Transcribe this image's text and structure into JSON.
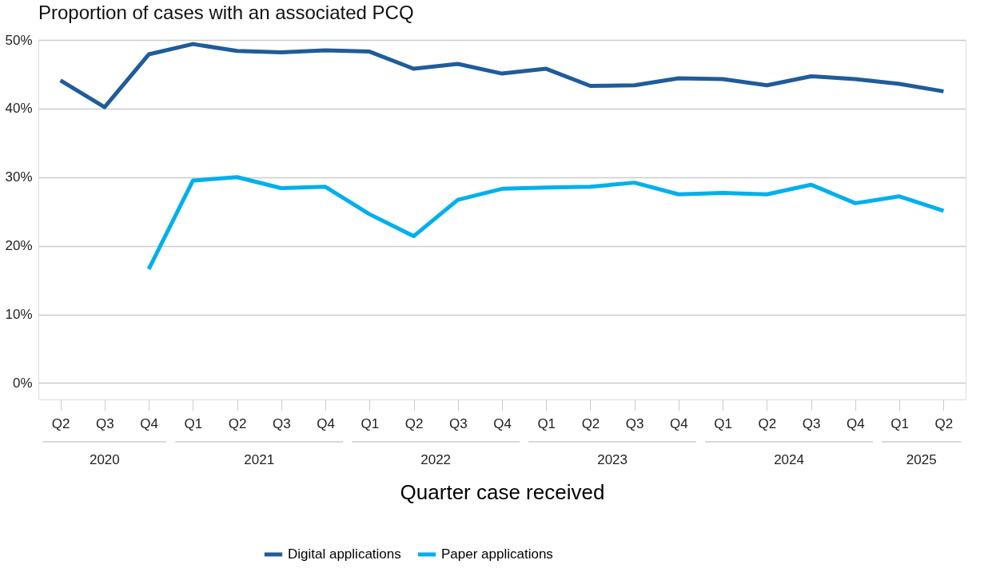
{
  "chart_data": {
    "type": "line",
    "title": "Proportion of cases with an associated PCQ",
    "xlabel": "Quarter case received",
    "categories": [
      "Q2",
      "Q3",
      "Q4",
      "Q1",
      "Q2",
      "Q3",
      "Q4",
      "Q1",
      "Q2",
      "Q3",
      "Q4",
      "Q1",
      "Q2",
      "Q3",
      "Q4",
      "Q1",
      "Q2",
      "Q3",
      "Q4",
      "Q1",
      "Q2"
    ],
    "annotations": [
      "2020",
      "2021",
      "2022",
      "2023",
      "2024",
      "2025"
    ],
    "series": [
      {
        "name": "Digital applications",
        "color": "#1f5c99",
        "values": [
          44.1,
          40.2,
          47.9,
          49.4,
          48.4,
          48.2,
          48.5,
          48.3,
          45.8,
          46.5,
          45.1,
          45.8,
          43.3,
          43.4,
          44.4,
          44.3,
          43.4,
          44.7,
          44.3,
          43.6,
          42.5
        ]
      },
      {
        "name": "Paper applications",
        "color": "#00b0ec",
        "values": [
          null,
          null,
          16.6,
          29.5,
          30.0,
          28.4,
          28.6,
          24.6,
          21.4,
          26.7,
          28.3,
          28.5,
          28.6,
          29.2,
          27.5,
          27.7,
          27.5,
          28.9,
          26.2,
          27.2,
          25.1
        ]
      }
    ],
    "ylim": [
      -2.4,
      50
    ],
    "yticks": [
      {
        "value": 0,
        "label": "0%"
      },
      {
        "value": 10,
        "label": "10%"
      },
      {
        "value": 20,
        "label": "20%"
      },
      {
        "value": 30,
        "label": "30%"
      },
      {
        "value": 40,
        "label": "40%"
      },
      {
        "value": 50,
        "label": "50%"
      }
    ],
    "grid": "y",
    "legend": "bottom",
    "marker": "none",
    "line_style": "solid"
  }
}
